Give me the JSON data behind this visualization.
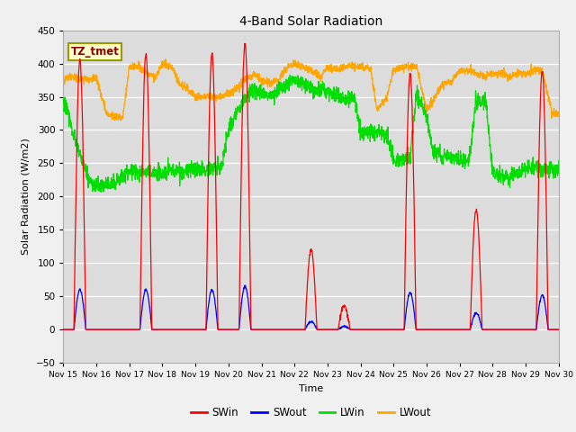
{
  "title": "4-Band Solar Radiation",
  "ylabel": "Solar Radiation (W/m2)",
  "xlabel": "Time",
  "annotation": "TZ_tmet",
  "ylim": [
    -50,
    450
  ],
  "fig_bg_color": "#f0f0f0",
  "plot_bg_color": "#dcdcdc",
  "colors": {
    "SWin": "#ff0000",
    "SWout": "#0000ff",
    "LWin": "#00dd00",
    "LWout": "#ffa500"
  },
  "xtick_labels": [
    "Nov 15",
    "Nov 16",
    "Nov 17",
    "Nov 18",
    "Nov 19",
    "Nov 20",
    "Nov 21",
    "Nov 22",
    "Nov 23",
    "Nov 24",
    "Nov 25",
    "Nov 26",
    "Nov 27",
    "Nov 28",
    "Nov 29",
    "Nov 30"
  ],
  "lwin_knots_x": [
    0,
    0.1,
    0.3,
    0.5,
    0.8,
    1.0,
    1.2,
    1.5,
    1.7,
    2.0,
    2.3,
    2.5,
    2.8,
    3.0,
    3.2,
    3.5,
    3.8,
    4.0,
    4.3,
    4.5,
    4.8,
    5.0,
    5.2,
    5.5,
    5.8,
    6.0,
    6.3,
    6.5,
    6.8,
    7.0,
    7.3,
    7.5,
    7.8,
    8.0,
    8.3,
    8.5,
    8.8,
    9.0,
    9.3,
    9.5,
    9.8,
    10.0,
    10.2,
    10.5,
    10.7,
    11.0,
    11.2,
    11.5,
    11.8,
    12.0,
    12.3,
    12.5,
    12.8,
    13.0,
    13.3,
    13.5,
    13.8,
    14.0,
    14.3,
    14.5,
    14.8,
    15.0
  ],
  "lwin_knots_y": [
    340,
    335,
    295,
    265,
    220,
    215,
    215,
    220,
    225,
    240,
    238,
    238,
    235,
    235,
    238,
    240,
    238,
    240,
    240,
    243,
    245,
    300,
    320,
    350,
    360,
    355,
    350,
    360,
    370,
    375,
    370,
    360,
    360,
    355,
    350,
    345,
    350,
    295,
    300,
    295,
    295,
    255,
    255,
    260,
    355,
    320,
    265,
    260,
    260,
    255,
    255,
    345,
    340,
    235,
    230,
    230,
    235,
    245,
    245,
    240,
    240,
    240
  ],
  "lwout_knots_x": [
    0,
    0.1,
    0.3,
    0.5,
    0.8,
    1.0,
    1.3,
    1.5,
    1.8,
    2.0,
    2.3,
    2.5,
    2.8,
    3.0,
    3.3,
    3.5,
    3.8,
    4.0,
    4.3,
    4.5,
    4.8,
    5.0,
    5.2,
    5.4,
    5.6,
    5.8,
    6.0,
    6.3,
    6.5,
    6.8,
    7.0,
    7.3,
    7.5,
    7.8,
    8.0,
    8.3,
    8.5,
    8.8,
    9.0,
    9.3,
    9.5,
    9.8,
    10.0,
    10.2,
    10.5,
    10.7,
    11.0,
    11.2,
    11.5,
    11.8,
    12.0,
    12.3,
    12.5,
    12.8,
    13.0,
    13.3,
    13.5,
    13.8,
    14.0,
    14.3,
    14.5,
    14.8,
    15.0
  ],
  "lwout_knots_y": [
    375,
    378,
    380,
    378,
    375,
    380,
    325,
    320,
    320,
    395,
    395,
    385,
    380,
    400,
    395,
    370,
    360,
    350,
    350,
    350,
    352,
    355,
    360,
    370,
    380,
    385,
    375,
    370,
    375,
    395,
    400,
    395,
    390,
    380,
    395,
    390,
    395,
    395,
    395,
    393,
    330,
    350,
    390,
    395,
    395,
    395,
    330,
    345,
    370,
    375,
    390,
    390,
    385,
    380,
    385,
    385,
    380,
    385,
    385,
    390,
    390,
    325,
    325
  ],
  "day_peaks_SWin": [
    405,
    0,
    415,
    0,
    415,
    430,
    0,
    120,
    35,
    0,
    385,
    0,
    180,
    0,
    390
  ],
  "day_peaks_SWout": [
    60,
    0,
    60,
    0,
    60,
    65,
    0,
    12,
    5,
    0,
    55,
    0,
    25,
    0,
    52
  ]
}
